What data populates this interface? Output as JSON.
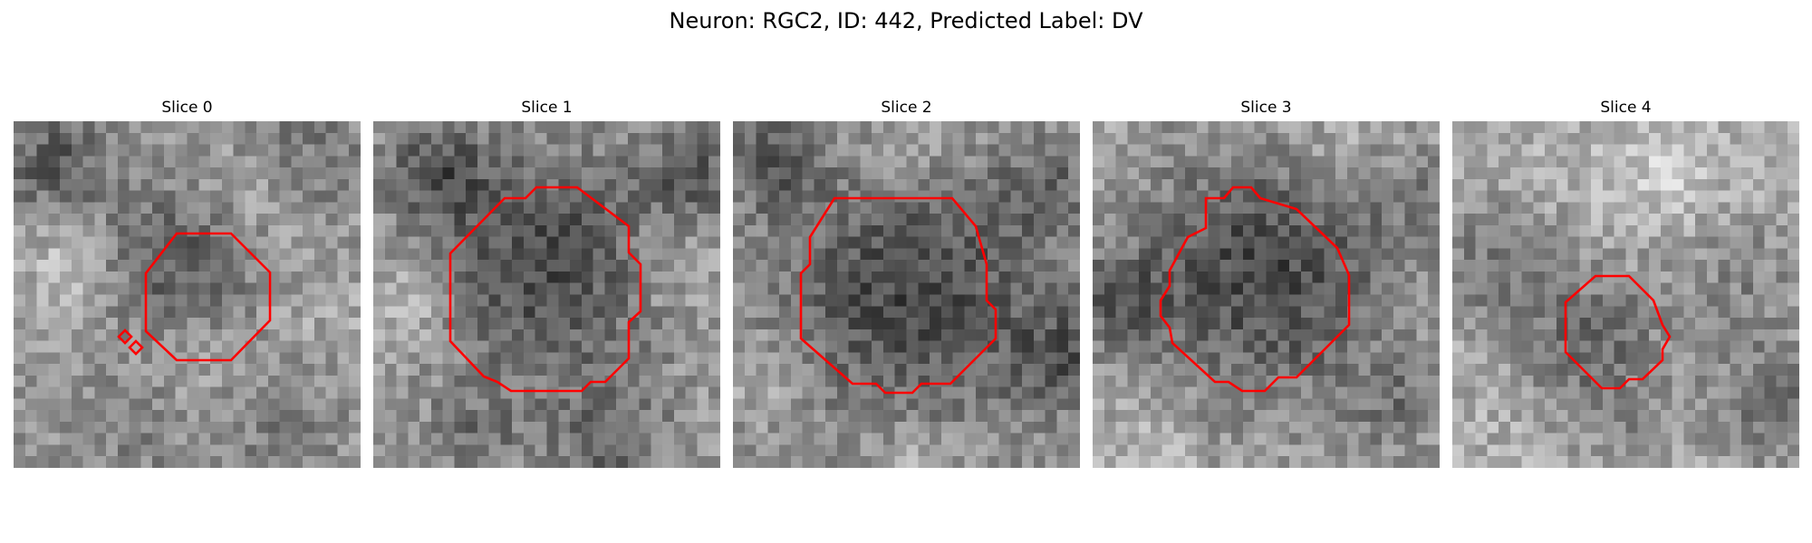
{
  "figure": {
    "title": "Neuron: RGC2, ID: 442, Predicted Label: DV"
  },
  "contour_color": "#ff0000",
  "colormap": "gray",
  "panels": [
    {
      "title": "Slice 0"
    },
    {
      "title": "Slice 1"
    },
    {
      "title": "Slice 2"
    },
    {
      "title": "Slice 3"
    },
    {
      "title": "Slice 4"
    }
  ]
}
